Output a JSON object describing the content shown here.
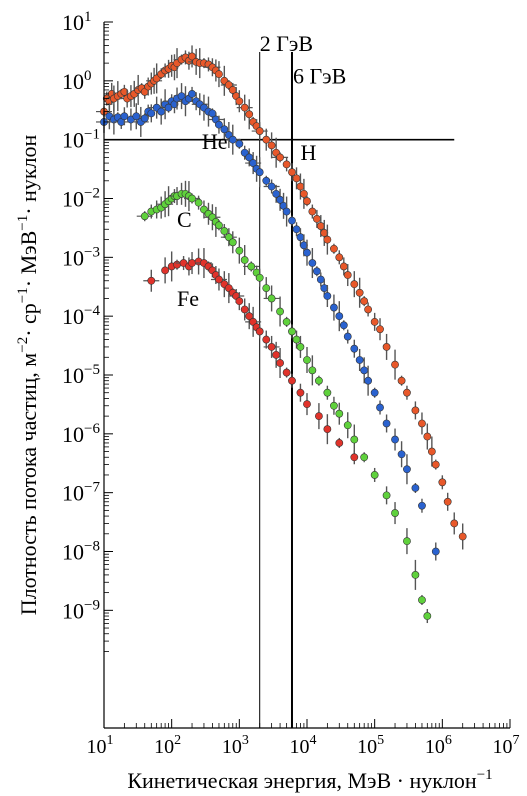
{
  "chart_data": {
    "type": "scatter",
    "title": "",
    "xlabel": "Кинетическая энергия, МэВ · нуклон",
    "xlabel_sup": "−1",
    "ylabel": "Плотность потока частиц, м",
    "ylabel_parts": [
      {
        "t": "Плотность потока частиц, м"
      },
      {
        "t": "−2",
        "sup": true
      },
      {
        "t": "· ср"
      },
      {
        "t": "−1",
        "sup": true
      },
      {
        "t": "· МэВ"
      },
      {
        "t": "−1",
        "sup": true
      },
      {
        "t": "· нуклон"
      }
    ],
    "x_scale": "log",
    "y_scale": "log",
    "xlim": [
      10,
      10000000
    ],
    "ylim": [
      1e-11,
      10
    ],
    "x_ticks": [
      {
        "base": "10",
        "exp": "1",
        "value": 10
      },
      {
        "base": "10",
        "exp": "2",
        "value": 100
      },
      {
        "base": "10",
        "exp": "3",
        "value": 1000
      },
      {
        "base": "10",
        "exp": "4",
        "value": 10000
      },
      {
        "base": "10",
        "exp": "5",
        "value": 100000
      },
      {
        "base": "10",
        "exp": "6",
        "value": 1000000
      },
      {
        "base": "10",
        "exp": "7",
        "value": 10000000
      }
    ],
    "y_ticks": [
      {
        "base": "10",
        "exp": "1",
        "value": 10
      },
      {
        "base": "10",
        "exp": "0",
        "value": 1
      },
      {
        "base": "10",
        "exp": "−1",
        "value": 0.1
      },
      {
        "base": "10",
        "exp": "−2",
        "value": 0.01
      },
      {
        "base": "10",
        "exp": "−3",
        "value": 0.001
      },
      {
        "base": "10",
        "exp": "−4",
        "value": 0.0001
      },
      {
        "base": "10",
        "exp": "−5",
        "value": 1e-05
      },
      {
        "base": "10",
        "exp": "−6",
        "value": 1e-06
      },
      {
        "base": "10",
        "exp": "−7",
        "value": 1e-07
      },
      {
        "base": "10",
        "exp": "−8",
        "value": 1e-08
      },
      {
        "base": "10",
        "exp": "−9",
        "value": 1e-09
      }
    ],
    "grid": false,
    "legend": "none",
    "annotations": [
      {
        "text": "2 ГэВ",
        "x": 2000,
        "y": 3.2
      },
      {
        "text": "6 ГэВ",
        "x": 6200,
        "y": 0.9
      },
      {
        "text": "He",
        "x": 280,
        "y": 0.07
      },
      {
        "text": "H",
        "x": 8000,
        "y": 0.045
      },
      {
        "text": "C",
        "x": 120,
        "y": 0.0033
      },
      {
        "text": "Fe",
        "x": 120,
        "y": 0.00015
      }
    ],
    "reference_lines": [
      {
        "orientation": "vertical",
        "x": 2000,
        "label": "2 ГэВ"
      },
      {
        "orientation": "vertical",
        "x": 6000,
        "label": "6 ГэВ"
      },
      {
        "orientation": "horizontal",
        "y": 0.1,
        "x_range": [
          10,
          1500000
        ]
      }
    ],
    "series": [
      {
        "name": "H",
        "color": "#e8582a",
        "points": [
          [
            10,
            0.3
          ],
          [
            11,
            0.5
          ],
          [
            12,
            0.45
          ],
          [
            13,
            0.6
          ],
          [
            14,
            0.5
          ],
          [
            16,
            0.55
          ],
          [
            18,
            0.6
          ],
          [
            20,
            0.65
          ],
          [
            22,
            0.5
          ],
          [
            25,
            0.55
          ],
          [
            28,
            0.6
          ],
          [
            32,
            0.7
          ],
          [
            36,
            0.75
          ],
          [
            40,
            0.65
          ],
          [
            45,
            0.8
          ],
          [
            50,
            0.9
          ],
          [
            55,
            1.0
          ],
          [
            60,
            1.1
          ],
          [
            70,
            1.3
          ],
          [
            80,
            1.5
          ],
          [
            90,
            1.6
          ],
          [
            100,
            1.8
          ],
          [
            110,
            1.7
          ],
          [
            120,
            2.0
          ],
          [
            140,
            2.3
          ],
          [
            160,
            2.5
          ],
          [
            180,
            2.2
          ],
          [
            200,
            2.6
          ],
          [
            230,
            2.1
          ],
          [
            260,
            2.0
          ],
          [
            300,
            2.0
          ],
          [
            350,
            1.9
          ],
          [
            400,
            1.7
          ],
          [
            450,
            1.5
          ],
          [
            500,
            1.3
          ],
          [
            600,
            1.0
          ],
          [
            700,
            0.85
          ],
          [
            800,
            0.7
          ],
          [
            900,
            0.55
          ],
          [
            1000,
            0.45
          ],
          [
            1200,
            0.35
          ],
          [
            1400,
            0.27
          ],
          [
            1600,
            0.2
          ],
          [
            1800,
            0.17
          ],
          [
            2000,
            0.14
          ],
          [
            2500,
            0.1
          ],
          [
            3000,
            0.08
          ],
          [
            3500,
            0.06
          ],
          [
            4000,
            0.05
          ],
          [
            5000,
            0.038
          ],
          [
            6000,
            0.028
          ],
          [
            7000,
            0.022
          ],
          [
            8000,
            0.016
          ],
          [
            9000,
            0.012
          ],
          [
            10000,
            0.009
          ],
          [
            12000,
            0.006
          ],
          [
            14000,
            0.0045
          ],
          [
            16000,
            0.0034
          ],
          [
            18000,
            0.0026
          ],
          [
            20000,
            0.002
          ],
          [
            25000,
            0.0014
          ],
          [
            30000,
            0.001
          ],
          [
            35000,
            0.0007
          ],
          [
            40000,
            0.0005
          ],
          [
            50000,
            0.00035
          ],
          [
            60000,
            0.00025
          ],
          [
            70000,
            0.00018
          ],
          [
            80000,
            0.00013
          ],
          [
            100000,
            8e-05
          ],
          [
            120000,
            6e-05
          ],
          [
            150000,
            3e-05
          ],
          [
            200000,
            1.5e-05
          ],
          [
            250000,
            8e-06
          ],
          [
            300000,
            5e-06
          ],
          [
            400000,
            2.5e-06
          ],
          [
            500000,
            1.5e-06
          ],
          [
            600000,
            9e-07
          ],
          [
            700000,
            5e-07
          ],
          [
            800000,
            3e-07
          ],
          [
            1000000,
            1.5e-07
          ],
          [
            1200000,
            7e-08
          ],
          [
            1500000,
            3e-08
          ],
          [
            2000000,
            1.8e-08
          ]
        ]
      },
      {
        "name": "He",
        "color": "#2a62cf",
        "points": [
          [
            10,
            0.2
          ],
          [
            12,
            0.25
          ],
          [
            14,
            0.22
          ],
          [
            16,
            0.24
          ],
          [
            18,
            0.2
          ],
          [
            20,
            0.25
          ],
          [
            25,
            0.22
          ],
          [
            30,
            0.25
          ],
          [
            35,
            0.2
          ],
          [
            40,
            0.23
          ],
          [
            45,
            0.3
          ],
          [
            50,
            0.28
          ],
          [
            60,
            0.35
          ],
          [
            70,
            0.3
          ],
          [
            80,
            0.4
          ],
          [
            90,
            0.35
          ],
          [
            100,
            0.45
          ],
          [
            110,
            0.4
          ],
          [
            120,
            0.5
          ],
          [
            140,
            0.55
          ],
          [
            160,
            0.45
          ],
          [
            180,
            0.5
          ],
          [
            200,
            0.6
          ],
          [
            230,
            0.45
          ],
          [
            260,
            0.4
          ],
          [
            300,
            0.35
          ],
          [
            350,
            0.3
          ],
          [
            400,
            0.28
          ],
          [
            450,
            0.22
          ],
          [
            500,
            0.18
          ],
          [
            600,
            0.15
          ],
          [
            700,
            0.12
          ],
          [
            800,
            0.1
          ],
          [
            1000,
            0.085
          ],
          [
            1200,
            0.06
          ],
          [
            1400,
            0.05
          ],
          [
            1600,
            0.04
          ],
          [
            1800,
            0.032
          ],
          [
            2000,
            0.028
          ],
          [
            2500,
            0.02
          ],
          [
            3000,
            0.016
          ],
          [
            3500,
            0.012
          ],
          [
            4000,
            0.0095
          ],
          [
            4500,
            0.0075
          ],
          [
            5000,
            0.006
          ],
          [
            6000,
            0.0042
          ],
          [
            7000,
            0.003
          ],
          [
            8000,
            0.0022
          ],
          [
            9000,
            0.0016
          ],
          [
            10000,
            0.0012
          ],
          [
            12000,
            0.0008
          ],
          [
            14000,
            0.00058
          ],
          [
            16000,
            0.00042
          ],
          [
            18000,
            0.0003
          ],
          [
            20000,
            0.00022
          ],
          [
            25000,
            0.00014
          ],
          [
            30000,
            0.0001
          ],
          [
            35000,
            7e-05
          ],
          [
            40000,
            4.5e-05
          ],
          [
            50000,
            2.8e-05
          ],
          [
            60000,
            1.8e-05
          ],
          [
            70000,
            1.2e-05
          ],
          [
            80000,
            8e-06
          ],
          [
            100000,
            5e-06
          ],
          [
            120000,
            2.8e-06
          ],
          [
            150000,
            1.5e-06
          ],
          [
            200000,
            8e-07
          ],
          [
            250000,
            4.5e-07
          ],
          [
            300000,
            2.5e-07
          ],
          [
            400000,
            1.2e-07
          ],
          [
            500000,
            6e-08
          ],
          [
            800000,
            1e-08
          ]
        ]
      },
      {
        "name": "C",
        "color": "#5fd13c",
        "points": [
          [
            40,
            0.005
          ],
          [
            50,
            0.006
          ],
          [
            60,
            0.0065
          ],
          [
            70,
            0.007
          ],
          [
            80,
            0.008
          ],
          [
            90,
            0.009
          ],
          [
            100,
            0.01
          ],
          [
            110,
            0.011
          ],
          [
            120,
            0.011
          ],
          [
            140,
            0.012
          ],
          [
            160,
            0.012
          ],
          [
            180,
            0.011
          ],
          [
            200,
            0.01
          ],
          [
            250,
            0.0085
          ],
          [
            300,
            0.0065
          ],
          [
            350,
            0.0055
          ],
          [
            400,
            0.0048
          ],
          [
            450,
            0.004
          ],
          [
            500,
            0.0035
          ],
          [
            600,
            0.0028
          ],
          [
            700,
            0.0022
          ],
          [
            800,
            0.0018
          ],
          [
            1000,
            0.0013
          ],
          [
            1200,
            0.0009
          ],
          [
            1500,
            0.0007
          ],
          [
            1800,
            0.00055
          ],
          [
            2000,
            0.00045
          ],
          [
            2500,
            0.0003
          ],
          [
            3000,
            0.0002
          ],
          [
            4000,
            0.00012
          ],
          [
            5000,
            8e-05
          ],
          [
            6000,
            5.5e-05
          ],
          [
            7000,
            4e-05
          ],
          [
            8000,
            3e-05
          ],
          [
            10000,
            1.8e-05
          ],
          [
            12000,
            1.2e-05
          ],
          [
            15000,
            8e-06
          ],
          [
            20000,
            5e-06
          ],
          [
            25000,
            3e-06
          ],
          [
            30000,
            2.2e-06
          ],
          [
            40000,
            1.4e-06
          ],
          [
            50000,
            8e-07
          ],
          [
            70000,
            4e-07
          ],
          [
            100000,
            2e-07
          ],
          [
            150000,
            9e-08
          ],
          [
            200000,
            4.5e-08
          ],
          [
            300000,
            1.5e-08
          ],
          [
            400000,
            4e-09
          ],
          [
            500000,
            1.5e-09
          ],
          [
            600000,
            8e-10
          ]
        ]
      },
      {
        "name": "Fe",
        "color": "#e0332b",
        "points": [
          [
            50,
            0.0004
          ],
          [
            80,
            0.0006
          ],
          [
            100,
            0.0007
          ],
          [
            120,
            0.00075
          ],
          [
            150,
            0.0008
          ],
          [
            180,
            0.0007
          ],
          [
            200,
            0.0008
          ],
          [
            250,
            0.00085
          ],
          [
            300,
            0.0008
          ],
          [
            350,
            0.0007
          ],
          [
            400,
            0.0006
          ],
          [
            450,
            0.0005
          ],
          [
            500,
            0.00042
          ],
          [
            600,
            0.00035
          ],
          [
            700,
            0.0003
          ],
          [
            800,
            0.00025
          ],
          [
            900,
            0.00022
          ],
          [
            1000,
            0.00018
          ],
          [
            1200,
            0.00013
          ],
          [
            1400,
            0.0001
          ],
          [
            1600,
            8e-05
          ],
          [
            1800,
            6.5e-05
          ],
          [
            2000,
            5.5e-05
          ],
          [
            2500,
            4e-05
          ],
          [
            3000,
            3e-05
          ],
          [
            3500,
            2.2e-05
          ],
          [
            4000,
            1.6e-05
          ],
          [
            5000,
            1.1e-05
          ],
          [
            6000,
            8e-06
          ],
          [
            8000,
            5e-06
          ],
          [
            10000,
            3.2e-06
          ],
          [
            15000,
            2e-06
          ],
          [
            20000,
            1.2e-06
          ],
          [
            30000,
            7e-07
          ],
          [
            50000,
            4e-07
          ]
        ]
      }
    ]
  }
}
